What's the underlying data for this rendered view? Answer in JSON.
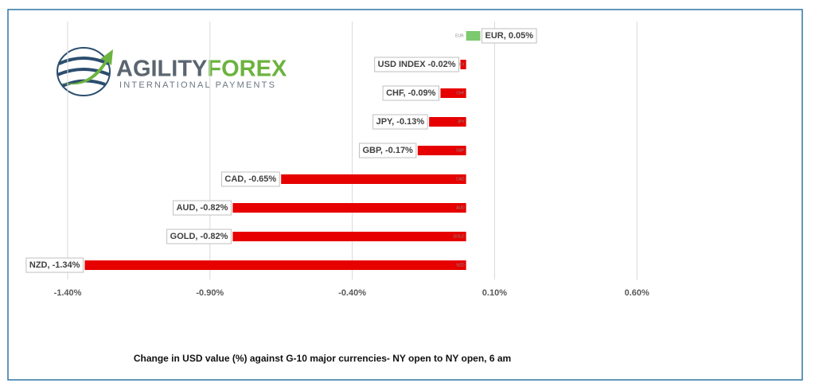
{
  "logo": {
    "name_part1": "AGILITY",
    "name_part2": "FOREX",
    "tagline": "INTERNATIONAL PAYMENTS"
  },
  "chart_data": {
    "type": "hbar",
    "caption": "Change in  USD value (%)  against  G-10 major currencies- NY open to NY open, 6 am",
    "categories": [
      "EUR",
      "USD INDEX",
      "CHF",
      "JPY",
      "GBP",
      "CAD",
      "AUD",
      "GOLD",
      "NZD"
    ],
    "values": [
      0.05,
      -0.02,
      -0.09,
      -0.13,
      -0.17,
      -0.65,
      -0.82,
      -0.82,
      -1.34
    ],
    "value_labels": [
      "EUR, 0.05%",
      "USD INDEX -0.02%",
      "CHF, -0.09%",
      "JPY, -0.13%",
      "GBP, -0.17%",
      "CAD, -0.65%",
      "AUD, -0.82%",
      "GOLD, -0.82%",
      "NZD, -1.34%"
    ],
    "positive_color": "#7dc96e",
    "negative_color": "#e60000",
    "xlim": [
      -1.4,
      1.1
    ],
    "xticks": [
      {
        "value": -1.4,
        "label": "-1.40%"
      },
      {
        "value": -0.9,
        "label": "-0.90%"
      },
      {
        "value": -0.4,
        "label": "-0.40%"
      },
      {
        "value": 0.1,
        "label": "0.10%"
      },
      {
        "value": 0.6,
        "label": "0.60%"
      }
    ],
    "grid": true
  }
}
